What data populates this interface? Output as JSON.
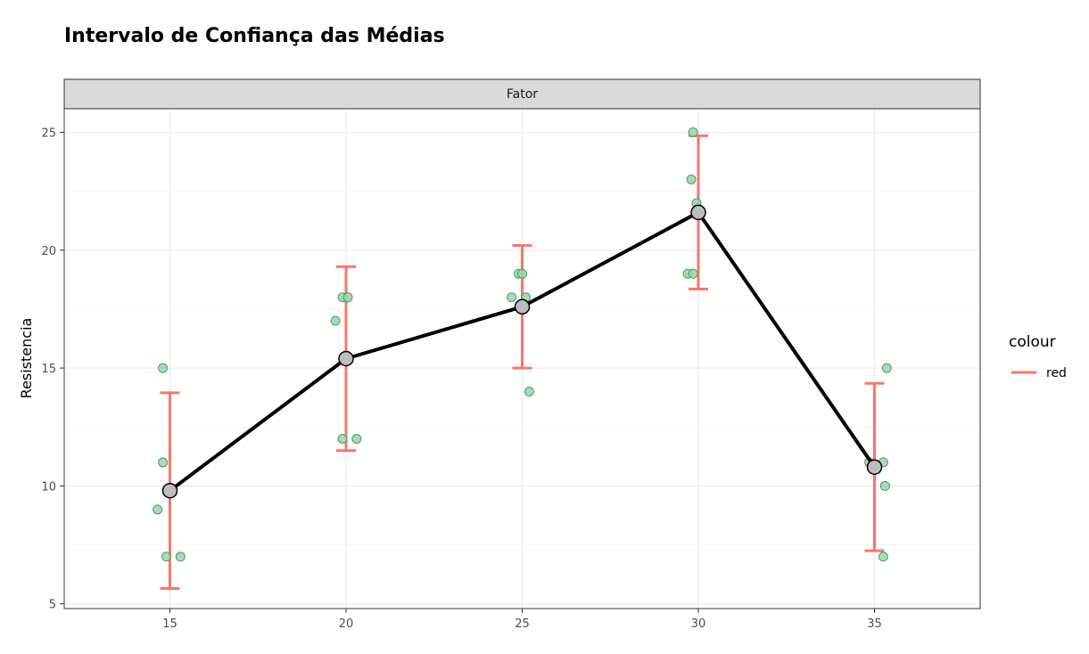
{
  "chart_data": {
    "type": "line",
    "title": "Intervalo de Confiança das Médias",
    "facet_label": "Fator",
    "xlabel": "",
    "ylabel": "Resistencia",
    "x_ticks": [
      15,
      20,
      25,
      30,
      35
    ],
    "y_ticks": [
      5,
      10,
      15,
      20,
      25
    ],
    "xlim": [
      12,
      38
    ],
    "ylim": [
      4.8,
      26
    ],
    "grid": true,
    "means": {
      "x": [
        15,
        20,
        25,
        30,
        35
      ],
      "y": [
        9.8,
        15.4,
        17.6,
        21.6,
        10.8
      ]
    },
    "error_bars": [
      {
        "x": 15,
        "lower": 5.65,
        "upper": 13.95
      },
      {
        "x": 20,
        "lower": 11.5,
        "upper": 19.3
      },
      {
        "x": 25,
        "lower": 15.0,
        "upper": 20.2
      },
      {
        "x": 30,
        "lower": 18.35,
        "upper": 24.85
      },
      {
        "x": 35,
        "lower": 7.25,
        "upper": 14.35
      }
    ],
    "observations": [
      {
        "x": 14.8,
        "y": 15
      },
      {
        "x": 14.8,
        "y": 11
      },
      {
        "x": 14.65,
        "y": 9
      },
      {
        "x": 14.9,
        "y": 7
      },
      {
        "x": 15.3,
        "y": 7
      },
      {
        "x": 19.9,
        "y": 18
      },
      {
        "x": 20.05,
        "y": 18
      },
      {
        "x": 19.7,
        "y": 17
      },
      {
        "x": 19.9,
        "y": 12
      },
      {
        "x": 20.3,
        "y": 12
      },
      {
        "x": 24.9,
        "y": 19
      },
      {
        "x": 25.0,
        "y": 19
      },
      {
        "x": 24.7,
        "y": 18
      },
      {
        "x": 25.1,
        "y": 18
      },
      {
        "x": 25.2,
        "y": 14
      },
      {
        "x": 29.85,
        "y": 25
      },
      {
        "x": 29.8,
        "y": 23
      },
      {
        "x": 29.95,
        "y": 22
      },
      {
        "x": 29.7,
        "y": 19
      },
      {
        "x": 29.85,
        "y": 19
      },
      {
        "x": 35.35,
        "y": 15
      },
      {
        "x": 34.85,
        "y": 11
      },
      {
        "x": 35.25,
        "y": 11
      },
      {
        "x": 35.3,
        "y": 10
      },
      {
        "x": 35.25,
        "y": 7
      }
    ],
    "legend": {
      "title": "colour",
      "placement": "right",
      "items": [
        {
          "label": "red",
          "color": "#f8766d"
        }
      ]
    },
    "colors": {
      "errorbar": "#f8766d",
      "points_fill": "#99d4a8",
      "points_stroke": "#4d9c66",
      "mean_line": "#000000",
      "mean_fill": "#bdbdbd",
      "strip_bg": "#d9d9d9",
      "grid_major": "#ebebeb",
      "grid_minor": "#f5f5f5"
    }
  }
}
